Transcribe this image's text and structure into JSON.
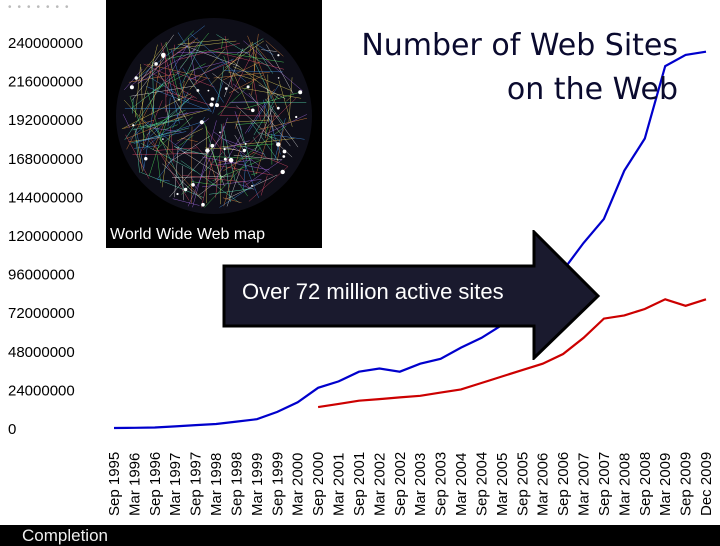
{
  "slide": {
    "title_line1": "Number of Web Sites",
    "title_line2": "on the Web",
    "map_caption": "World Wide Web map",
    "callout": "Over 72 million active sites",
    "footer_fragment": "Completion"
  },
  "colors": {
    "total_series": "#0000cc",
    "active_series": "#cc0000",
    "background": "#ffffff",
    "slide_background": "#000000"
  },
  "chart_data": {
    "type": "line",
    "title": "",
    "xlabel": "",
    "ylabel": "",
    "ylim": [
      0,
      240000000
    ],
    "yticks": [
      "240000000",
      "216000000",
      "192000000",
      "168000000",
      "144000000",
      "120000000",
      "96000000",
      "72000000",
      "48000000",
      "24000000",
      "0"
    ],
    "xticks": [
      "Sep 1995",
      "Mar 1996",
      "Sep 1996",
      "Mar 1997",
      "Sep 1997",
      "Mar 1998",
      "Sep 1998",
      "Mar 1999",
      "Sep 1999",
      "Mar 2000",
      "Sep 2000",
      "Mar 2001",
      "Sep 2001",
      "Mar 2002",
      "Sep 2002",
      "Mar 2003",
      "Sep 2003",
      "Mar 2004",
      "Sep 2004",
      "Mar 2005",
      "Sep 2005",
      "Mar 2006",
      "Sep 2006",
      "Mar 2007",
      "Sep 2007",
      "Mar 2008",
      "Sep 2008",
      "Mar 2009",
      "Sep 2009",
      "Dec 2009"
    ],
    "grid": false,
    "series": [
      {
        "color": "#0000cc",
        "x": [
          "Sep 1995",
          "Mar 1996",
          "Sep 1996",
          "Mar 1997",
          "Sep 1997",
          "Mar 1998",
          "Sep 1998",
          "Mar 1999",
          "Sep 1999",
          "Mar 2000",
          "Sep 2000",
          "Mar 2001",
          "Sep 2001",
          "Mar 2002",
          "Sep 2002",
          "Mar 2003",
          "Sep 2003",
          "Mar 2004",
          "Sep 2004",
          "Mar 2005",
          "Sep 2005",
          "Mar 2006",
          "Sep 2006",
          "Mar 2007",
          "Sep 2007",
          "Mar 2008",
          "Sep 2008",
          "Mar 2009",
          "Sep 2009",
          "Dec 2009"
        ],
        "values": [
          20000,
          100000,
          300000,
          1000000,
          1800000,
          2500000,
          4000000,
          5500000,
          10000000,
          16000000,
          25000000,
          29000000,
          35000000,
          37000000,
          35000000,
          40000000,
          43000000,
          50000000,
          56000000,
          64000000,
          73000000,
          84000000,
          98000000,
          115000000,
          130000000,
          160000000,
          180000000,
          225000000,
          232000000,
          234000000
        ]
      },
      {
        "color": "#cc0000",
        "x": [
          "Sep 2000",
          "Mar 2001",
          "Sep 2001",
          "Mar 2002",
          "Sep 2002",
          "Mar 2003",
          "Sep 2003",
          "Mar 2004",
          "Sep 2004",
          "Mar 2005",
          "Sep 2005",
          "Mar 2006",
          "Sep 2006",
          "Mar 2007",
          "Sep 2007",
          "Mar 2008",
          "Sep 2008",
          "Mar 2009",
          "Sep 2009",
          "Dec 2009"
        ],
        "values": [
          13000000,
          15000000,
          17000000,
          18000000,
          19000000,
          20000000,
          22000000,
          24000000,
          28000000,
          32000000,
          36000000,
          40000000,
          46000000,
          56000000,
          68000000,
          70000000,
          74000000,
          80000000,
          76000000,
          80000000
        ]
      }
    ]
  }
}
